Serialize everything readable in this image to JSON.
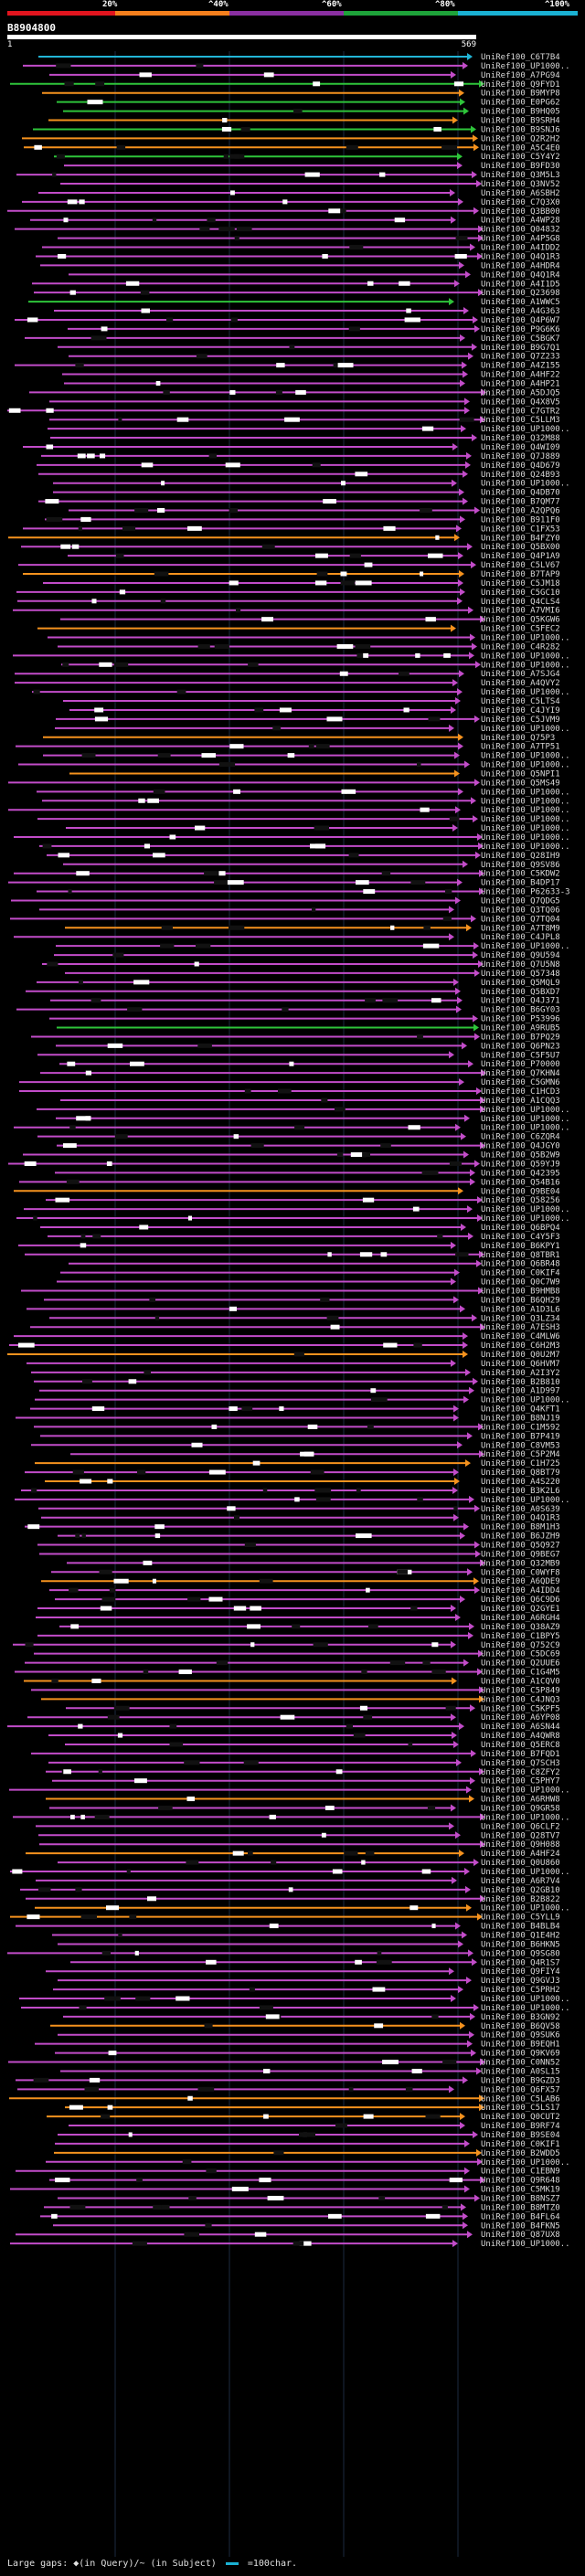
{
  "legend": {
    "labels": [
      "20%",
      "^40%",
      "^60%",
      "^80%",
      "^100%"
    ],
    "colors": [
      "#e1141e",
      "#f5801d",
      "#8a2fa1",
      "#1ea33a",
      "#1ab1d3"
    ]
  },
  "query": {
    "id": "B8904800",
    "start": "1",
    "end": "569"
  },
  "footer": {
    "gaps_text": "Large gaps: ◆(in Query)/~ (in Subject)",
    "scale_text": "=100char."
  },
  "hits": [
    {
      "id": "UniRef100_C6T7B4",
      "color": "teal"
    },
    {
      "id": "UniRef100_UP1000..",
      "color": "purple"
    },
    {
      "id": "UniRef100_A7PG94",
      "color": "purple"
    },
    {
      "id": "UniRef100_Q9FYD1",
      "color": "green"
    },
    {
      "id": "UniRef100_B9MYP8",
      "color": "orange"
    },
    {
      "id": "UniRef100_E0PG62",
      "color": "green"
    },
    {
      "id": "UniRef100_B9HQ05",
      "color": "green"
    },
    {
      "id": "UniRef100_B9SRH4",
      "color": "orange"
    },
    {
      "id": "UniRef100_B9SNJ6",
      "color": "green"
    },
    {
      "id": "UniRef100_Q2R2H2",
      "color": "orange"
    },
    {
      "id": "UniRef100_A5C4E0",
      "color": "orange"
    },
    {
      "id": "UniRef100_C5Y4Y2",
      "color": "green"
    },
    {
      "id": "UniRef100_B9FD30",
      "color": "purple"
    },
    {
      "id": "UniRef100_Q3M5L3",
      "color": "purple"
    },
    {
      "id": "UniRef100_Q3NV52",
      "color": "purple"
    },
    {
      "id": "UniRef100_A6SBH2",
      "color": "purple"
    },
    {
      "id": "UniRef100_C7Q3X0",
      "color": "purple"
    },
    {
      "id": "UniRef100_Q3BB00",
      "color": "purple"
    },
    {
      "id": "UniRef100_A4WP28",
      "color": "purple"
    },
    {
      "id": "UniRef100_Q04832",
      "color": "purple"
    },
    {
      "id": "UniRef100_A4P5G8",
      "color": "purple"
    },
    {
      "id": "UniRef100_A4IDD2",
      "color": "purple"
    },
    {
      "id": "UniRef100_Q4Q1R3",
      "color": "purple"
    },
    {
      "id": "UniRef100_A4HDR4",
      "color": "purple"
    },
    {
      "id": "UniRef100_Q4Q1R4",
      "color": "purple"
    },
    {
      "id": "UniRef100_A4I1D5",
      "color": "purple"
    },
    {
      "id": "UniRef100_Q23698",
      "color": "purple"
    },
    {
      "id": "UniRef100_A1WWC5",
      "color": "green"
    },
    {
      "id": "UniRef100_A4G363",
      "color": "purple"
    },
    {
      "id": "UniRef100_Q4P6W7",
      "color": "purple"
    },
    {
      "id": "UniRef100_P9G6K6",
      "color": "purple"
    },
    {
      "id": "UniRef100_C5BGK7",
      "color": "purple"
    },
    {
      "id": "UniRef100_B9G7Q1",
      "color": "purple"
    },
    {
      "id": "UniRef100_Q7Z233",
      "color": "purple"
    },
    {
      "id": "UniRef100_A4Z155",
      "color": "purple"
    },
    {
      "id": "UniRef100_A4HF22",
      "color": "purple"
    },
    {
      "id": "UniRef100_A4HP21",
      "color": "purple"
    },
    {
      "id": "UniRef100_A5DJQ5",
      "color": "purple"
    },
    {
      "id": "UniRef100_Q4X8V5",
      "color": "purple"
    },
    {
      "id": "UniRef100_C7GTR2",
      "color": "purple"
    },
    {
      "id": "UniRef100_C5LLM3",
      "color": "purple"
    },
    {
      "id": "UniRef100_UP1000..",
      "color": "purple"
    },
    {
      "id": "UniRef100_Q32M88",
      "color": "purple"
    },
    {
      "id": "UniRef100_Q4WI09",
      "color": "purple"
    },
    {
      "id": "UniRef100_Q7J889",
      "color": "purple"
    },
    {
      "id": "UniRef100_Q4D679",
      "color": "purple"
    },
    {
      "id": "UniRef100_Q24B93",
      "color": "purple"
    },
    {
      "id": "UniRef100_UP1000..",
      "color": "purple"
    },
    {
      "id": "UniRef100_Q4DB70",
      "color": "purple"
    },
    {
      "id": "UniRef100_B7QM77",
      "color": "purple"
    },
    {
      "id": "UniRef100_A2QPQ6",
      "color": "purple"
    },
    {
      "id": "UniRef100_B911F0",
      "color": "purple"
    },
    {
      "id": "UniRef100_C1FX53",
      "color": "purple"
    },
    {
      "id": "UniRef100_B4FZY0",
      "color": "orange"
    },
    {
      "id": "UniRef100_Q5BX00",
      "color": "purple"
    },
    {
      "id": "UniRef100_Q4P1A9",
      "color": "purple"
    },
    {
      "id": "UniRef100_C5LV67",
      "color": "purple"
    },
    {
      "id": "UniRef100_B7TAP9",
      "color": "orange"
    },
    {
      "id": "UniRef100_C5JM18",
      "color": "purple"
    },
    {
      "id": "UniRef100_C5GC10",
      "color": "purple"
    },
    {
      "id": "UniRef100_Q4CLS4",
      "color": "purple"
    },
    {
      "id": "UniRef100_A7VMI6",
      "color": "purple"
    },
    {
      "id": "UniRef100_Q5KGW6",
      "color": "purple"
    },
    {
      "id": "UniRef100_C5FEC2",
      "color": "orange"
    },
    {
      "id": "UniRef100_UP1000..",
      "color": "purple"
    },
    {
      "id": "UniRef100_C4R282",
      "color": "purple"
    },
    {
      "id": "UniRef100_UP1000..",
      "color": "purple"
    },
    {
      "id": "UniRef100_UP1000..",
      "color": "purple"
    },
    {
      "id": "UniRef100_A7SJG4",
      "color": "purple"
    },
    {
      "id": "UniRef100_A4QVY2",
      "color": "purple"
    },
    {
      "id": "UniRef100_UP1000..",
      "color": "purple"
    },
    {
      "id": "UniRef100_C5LTS4",
      "color": "purple"
    },
    {
      "id": "UniRef100_C4JYI9",
      "color": "purple"
    },
    {
      "id": "UniRef100_C5JVM9",
      "color": "purple"
    },
    {
      "id": "UniRef100_UP1000..",
      "color": "purple"
    },
    {
      "id": "UniRef100_Q75P3",
      "color": "orange"
    },
    {
      "id": "UniRef100_A7TP51",
      "color": "purple"
    },
    {
      "id": "UniRef100_UP1000..",
      "color": "purple"
    },
    {
      "id": "UniRef100_UP1000..",
      "color": "purple"
    },
    {
      "id": "UniRef100_Q5NPI1",
      "color": "orange"
    },
    {
      "id": "UniRef100_Q5MS49",
      "color": "purple"
    },
    {
      "id": "UniRef100_UP1000..",
      "color": "purple"
    },
    {
      "id": "UniRef100_UP1000..",
      "color": "purple"
    },
    {
      "id": "UniRef100_UP1000..",
      "color": "purple"
    },
    {
      "id": "UniRef100_UP1000..",
      "color": "purple"
    },
    {
      "id": "UniRef100_UP1000..",
      "color": "purple"
    },
    {
      "id": "UniRef100_UP1000..",
      "color": "purple"
    },
    {
      "id": "UniRef100_UP1000..",
      "color": "purple"
    },
    {
      "id": "UniRef100_Q28IH9",
      "color": "purple"
    },
    {
      "id": "UniRef100_Q9SV86",
      "color": "purple"
    },
    {
      "id": "UniRef100_C5KDW2",
      "color": "purple"
    },
    {
      "id": "UniRef100_B4DP17",
      "color": "purple"
    },
    {
      "id": "UniRef100_P62633-3",
      "color": "purple"
    },
    {
      "id": "UniRef100_Q7QDG5",
      "color": "purple"
    },
    {
      "id": "UniRef100_Q3TQ06",
      "color": "purple"
    },
    {
      "id": "UniRef100_Q7TQ04",
      "color": "purple"
    },
    {
      "id": "UniRef100_A7T8M9",
      "color": "orange"
    },
    {
      "id": "UniRef100_C4JPL8",
      "color": "purple"
    },
    {
      "id": "UniRef100_UP1000..",
      "color": "purple"
    },
    {
      "id": "UniRef100_Q9U594",
      "color": "purple"
    },
    {
      "id": "UniRef100_Q7U5N8",
      "color": "purple"
    },
    {
      "id": "UniRef100_Q57348",
      "color": "purple"
    },
    {
      "id": "UniRef100_Q5MQL9",
      "color": "purple"
    },
    {
      "id": "UniRef100_Q5BXD7",
      "color": "purple"
    },
    {
      "id": "UniRef100_Q4J371",
      "color": "purple"
    },
    {
      "id": "UniRef100_B6GY03",
      "color": "purple"
    },
    {
      "id": "UniRef100_P53996",
      "color": "purple"
    },
    {
      "id": "UniRef100_A9RUB5",
      "color": "green"
    },
    {
      "id": "UniRef100_B7PQ29",
      "color": "purple"
    },
    {
      "id": "UniRef100_Q6PN23",
      "color": "purple"
    },
    {
      "id": "UniRef100_C5F5U7",
      "color": "purple"
    },
    {
      "id": "UniRef100_P70000",
      "color": "purple"
    },
    {
      "id": "UniRef100_Q7KHN4",
      "color": "purple"
    },
    {
      "id": "UniRef100_C5GMN6",
      "color": "purple"
    },
    {
      "id": "UniRef100_C1HCD3",
      "color": "purple"
    },
    {
      "id": "UniRef100_A1CQQ3",
      "color": "purple"
    },
    {
      "id": "UniRef100_UP1000..",
      "color": "purple"
    },
    {
      "id": "UniRef100_UP1000..",
      "color": "purple"
    },
    {
      "id": "UniRef100_UP1000..",
      "color": "purple"
    },
    {
      "id": "UniRef100_C6ZQR4",
      "color": "purple"
    },
    {
      "id": "UniRef100_Q4JGY0",
      "color": "purple"
    },
    {
      "id": "UniRef100_Q5B2W9",
      "color": "purple"
    },
    {
      "id": "UniRef100_Q59YJ9",
      "color": "purple"
    },
    {
      "id": "UniRef100_Q42395",
      "color": "purple"
    },
    {
      "id": "UniRef100_Q54B16",
      "color": "purple"
    },
    {
      "id": "UniRef100_Q9BE04",
      "color": "orange"
    },
    {
      "id": "UniRef100_Q58256",
      "color": "purple"
    },
    {
      "id": "UniRef100_UP1000..",
      "color": "purple"
    },
    {
      "id": "UniRef100_UP1000..",
      "color": "purple"
    },
    {
      "id": "UniRef100_Q6BPQ4",
      "color": "purple"
    },
    {
      "id": "UniRef100_C4Y5F3",
      "color": "purple"
    },
    {
      "id": "UniRef100_B6KPY1",
      "color": "purple"
    },
    {
      "id": "UniRef100_Q8TBR1",
      "color": "purple"
    },
    {
      "id": "UniRef100_Q6BR48",
      "color": "purple"
    },
    {
      "id": "UniRef100_C0KIF4",
      "color": "purple"
    },
    {
      "id": "UniRef100_Q0C7W9",
      "color": "purple"
    },
    {
      "id": "UniRef100_B9HMB8",
      "color": "purple"
    },
    {
      "id": "UniRef100_B6QH29",
      "color": "purple"
    },
    {
      "id": "UniRef100_A1D3L6",
      "color": "purple"
    },
    {
      "id": "UniRef100_Q3LZ34",
      "color": "purple"
    },
    {
      "id": "UniRef100_A7ESH3",
      "color": "purple"
    },
    {
      "id": "UniRef100_C4MLW6",
      "color": "purple"
    },
    {
      "id": "UniRef100_C6H2M3",
      "color": "purple"
    },
    {
      "id": "UniRef100_Q0U2M7",
      "color": "orange"
    },
    {
      "id": "UniRef100_Q6HVM7",
      "color": "purple"
    },
    {
      "id": "UniRef100_A2I3Y2",
      "color": "purple"
    },
    {
      "id": "UniRef100_B2B810",
      "color": "purple"
    },
    {
      "id": "UniRef100_A1D997",
      "color": "purple"
    },
    {
      "id": "UniRef100_UP1000..",
      "color": "purple"
    },
    {
      "id": "UniRef100_Q4KFT1",
      "color": "purple"
    },
    {
      "id": "UniRef100_B8NJ19",
      "color": "purple"
    },
    {
      "id": "UniRef100_C1M592",
      "color": "purple"
    },
    {
      "id": "UniRef100_B7P419",
      "color": "purple"
    },
    {
      "id": "UniRef100_C8VM53",
      "color": "purple"
    },
    {
      "id": "UniRef100_C5P2M4",
      "color": "purple"
    },
    {
      "id": "UniRef100_C1H725",
      "color": "orange"
    },
    {
      "id": "UniRef100_Q8BT79",
      "color": "purple"
    },
    {
      "id": "UniRef100_A4S220",
      "color": "orange"
    },
    {
      "id": "UniRef100_B3K2L6",
      "color": "purple"
    },
    {
      "id": "UniRef100_UP1000..",
      "color": "purple"
    },
    {
      "id": "UniRef100_A0S639",
      "color": "purple"
    },
    {
      "id": "UniRef100_Q4Q1R3",
      "color": "purple"
    },
    {
      "id": "UniRef100_B8M1H3",
      "color": "purple"
    },
    {
      "id": "UniRef100_B6JZH9",
      "color": "purple"
    },
    {
      "id": "UniRef100_Q5Q927",
      "color": "purple"
    },
    {
      "id": "UniRef100_Q9BEG7",
      "color": "purple"
    },
    {
      "id": "UniRef100_Q32MB9",
      "color": "purple"
    },
    {
      "id": "UniRef100_C0WYF8",
      "color": "purple"
    },
    {
      "id": "UniRef100_A6QDE9",
      "color": "orange"
    },
    {
      "id": "UniRef100_A4IDD4",
      "color": "purple"
    },
    {
      "id": "UniRef100_Q6C9D6",
      "color": "purple"
    },
    {
      "id": "UniRef100_Q2GYE1",
      "color": "purple"
    },
    {
      "id": "UniRef100_A6RGH4",
      "color": "purple"
    },
    {
      "id": "UniRef100_Q38AZ9",
      "color": "purple"
    },
    {
      "id": "UniRef100_C1BPY5",
      "color": "purple"
    },
    {
      "id": "UniRef100_Q752C9",
      "color": "purple"
    },
    {
      "id": "UniRef100_C5DC69",
      "color": "purple"
    },
    {
      "id": "UniRef100_Q2UUE6",
      "color": "purple"
    },
    {
      "id": "UniRef100_C1G4M5",
      "color": "purple"
    },
    {
      "id": "UniRef100_A1CQV0",
      "color": "orange"
    },
    {
      "id": "UniRef100_C5P849",
      "color": "purple"
    },
    {
      "id": "UniRef100_C4JNQ3",
      "color": "orange"
    },
    {
      "id": "UniRef100_C5KPF5",
      "color": "purple"
    },
    {
      "id": "UniRef100_A6YP08",
      "color": "purple"
    },
    {
      "id": "UniRef100_A6SN44",
      "color": "purple"
    },
    {
      "id": "UniRef100_A4QWR8",
      "color": "purple"
    },
    {
      "id": "UniRef100_Q5ERC8",
      "color": "purple"
    },
    {
      "id": "UniRef100_B7FQD1",
      "color": "purple"
    },
    {
      "id": "UniRef100_Q7SCH3",
      "color": "purple"
    },
    {
      "id": "UniRef100_C8ZFY2",
      "color": "purple"
    },
    {
      "id": "UniRef100_C5PHY7",
      "color": "purple"
    },
    {
      "id": "UniRef100_UP1000..",
      "color": "purple"
    },
    {
      "id": "UniRef100_A6RHW8",
      "color": "orange"
    },
    {
      "id": "UniRef100_Q9GR58",
      "color": "purple"
    },
    {
      "id": "UniRef100_UP1000..",
      "color": "purple"
    },
    {
      "id": "UniRef100_Q6CLF2",
      "color": "purple"
    },
    {
      "id": "UniRef100_Q28TV7",
      "color": "purple"
    },
    {
      "id": "UniRef100_Q9H088",
      "color": "purple"
    },
    {
      "id": "UniRef100_A4HF24",
      "color": "orange"
    },
    {
      "id": "UniRef100_Q0U860",
      "color": "purple"
    },
    {
      "id": "UniRef100_UP1000..",
      "color": "purple"
    },
    {
      "id": "UniRef100_A6R7V4",
      "color": "purple"
    },
    {
      "id": "UniRef100_Q2GB10",
      "color": "purple"
    },
    {
      "id": "UniRef100_B2B822",
      "color": "purple"
    },
    {
      "id": "UniRef100_UP1000..",
      "color": "orange"
    },
    {
      "id": "UniRef100_C5YLL9",
      "color": "orange"
    },
    {
      "id": "UniRef100_B4BLB4",
      "color": "purple"
    },
    {
      "id": "UniRef100_Q1E4H2",
      "color": "purple"
    },
    {
      "id": "UniRef100_B6HKN5",
      "color": "purple"
    },
    {
      "id": "UniRef100_Q9SG80",
      "color": "purple"
    },
    {
      "id": "UniRef100_Q4R1S7",
      "color": "purple"
    },
    {
      "id": "UniRef100_Q9FIY4",
      "color": "purple"
    },
    {
      "id": "UniRef100_Q9GVJ3",
      "color": "purple"
    },
    {
      "id": "UniRef100_C5PRH2",
      "color": "purple"
    },
    {
      "id": "UniRef100_UP1000..",
      "color": "purple"
    },
    {
      "id": "UniRef100_UP1000..",
      "color": "purple"
    },
    {
      "id": "UniRef100_B3GN92",
      "color": "purple"
    },
    {
      "id": "UniRef100_B6QV58",
      "color": "orange"
    },
    {
      "id": "UniRef100_Q9SUK6",
      "color": "purple"
    },
    {
      "id": "UniRef100_B9EQH1",
      "color": "purple"
    },
    {
      "id": "UniRef100_Q9KV69",
      "color": "purple"
    },
    {
      "id": "UniRef100_C0NN52",
      "color": "purple"
    },
    {
      "id": "UniRef100_A0SL15",
      "color": "purple"
    },
    {
      "id": "UniRef100_B9GZD3",
      "color": "purple"
    },
    {
      "id": "UniRef100_Q6FX57",
      "color": "purple"
    },
    {
      "id": "UniRef100_C5LAB6",
      "color": "orange"
    },
    {
      "id": "UniRef100_C5LS17",
      "color": "orange"
    },
    {
      "id": "UniRef100_Q0CUT2",
      "color": "orange"
    },
    {
      "id": "UniRef100_B9RF74",
      "color": "purple"
    },
    {
      "id": "UniRef100_B9SE04",
      "color": "purple"
    },
    {
      "id": "UniRef100_C0KIF1",
      "color": "purple"
    },
    {
      "id": "UniRef100_B2WDD5",
      "color": "orange"
    },
    {
      "id": "UniRef100_UP1000..",
      "color": "purple"
    },
    {
      "id": "UniRef100_C1EBN9",
      "color": "purple"
    },
    {
      "id": "UniRef100_Q9R648",
      "color": "purple"
    },
    {
      "id": "UniRef100_C5MK19",
      "color": "purple"
    },
    {
      "id": "UniRef100_B8NSZ7",
      "color": "purple"
    },
    {
      "id": "UniRef100_B8MTZ0",
      "color": "purple"
    },
    {
      "id": "UniRef100_B4FL64",
      "color": "purple"
    },
    {
      "id": "UniRef100_B4FKN5",
      "color": "purple"
    },
    {
      "id": "UniRef100_Q87UX8",
      "color": "purple"
    },
    {
      "id": "UniRef100_UP1000..",
      "color": "purple"
    }
  ]
}
